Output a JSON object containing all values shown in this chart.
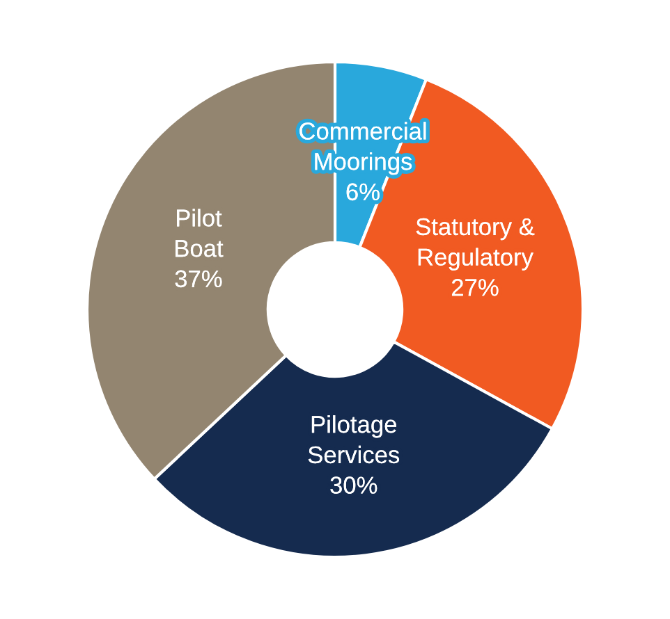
{
  "chart_data": {
    "type": "donut",
    "categories": [
      "Commercial Moorings",
      "Statutory & Regulatory",
      "Pilotage Services",
      "Pilot Boat"
    ],
    "values": [
      6,
      27,
      30,
      37
    ],
    "colors": [
      "#29a8dc",
      "#f15a22",
      "#152b4f",
      "#938570"
    ],
    "value_labels": [
      "6%",
      "27%",
      "30%",
      "37%"
    ]
  }
}
